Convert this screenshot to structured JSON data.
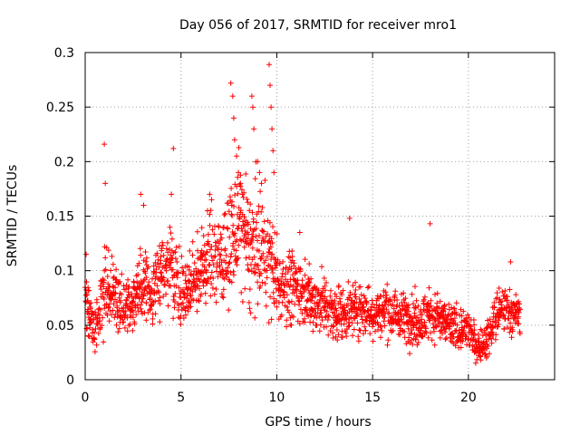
{
  "chart_data": {
    "type": "scatter",
    "title": "Day 056 of 2017, SRMTID for receiver mro1",
    "xlabel": "GPS time / hours",
    "ylabel": "SRMTID / TECUs",
    "xlim": [
      0,
      24.5
    ],
    "ylim": [
      0,
      0.3
    ],
    "xticks": [
      0,
      5,
      10,
      15,
      20
    ],
    "xtick_labels": [
      "0",
      "5",
      "10",
      "15",
      "20"
    ],
    "yticks": [
      0,
      0.05,
      0.1,
      0.15,
      0.2,
      0.25,
      0.3
    ],
    "ytick_labels": [
      "0",
      "0.05",
      "0.1",
      "0.15",
      "0.2",
      "0.25",
      "0.3"
    ],
    "grid": true,
    "marker": "+",
    "marker_color": "#ff0000",
    "series": [
      {
        "name": "mro1",
        "profile": [
          [
            0.0,
            0.075,
            0.018
          ],
          [
            0.5,
            0.045,
            0.015
          ],
          [
            1.0,
            0.085,
            0.025
          ],
          [
            1.5,
            0.08,
            0.02
          ],
          [
            2.0,
            0.065,
            0.018
          ],
          [
            2.5,
            0.075,
            0.02
          ],
          [
            3.0,
            0.09,
            0.025
          ],
          [
            3.5,
            0.08,
            0.02
          ],
          [
            4.0,
            0.1,
            0.025
          ],
          [
            4.5,
            0.11,
            0.03
          ],
          [
            5.0,
            0.08,
            0.02
          ],
          [
            5.5,
            0.085,
            0.022
          ],
          [
            6.0,
            0.1,
            0.025
          ],
          [
            6.5,
            0.11,
            0.03
          ],
          [
            7.0,
            0.11,
            0.03
          ],
          [
            7.5,
            0.12,
            0.035
          ],
          [
            8.0,
            0.15,
            0.045
          ],
          [
            8.5,
            0.12,
            0.04
          ],
          [
            9.0,
            0.12,
            0.04
          ],
          [
            9.5,
            0.12,
            0.04
          ],
          [
            10.0,
            0.09,
            0.025
          ],
          [
            10.5,
            0.085,
            0.022
          ],
          [
            11.0,
            0.085,
            0.022
          ],
          [
            11.5,
            0.08,
            0.02
          ],
          [
            12.0,
            0.07,
            0.018
          ],
          [
            12.5,
            0.07,
            0.018
          ],
          [
            13.0,
            0.06,
            0.015
          ],
          [
            13.5,
            0.06,
            0.015
          ],
          [
            14.0,
            0.065,
            0.017
          ],
          [
            14.5,
            0.065,
            0.017
          ],
          [
            15.0,
            0.06,
            0.015
          ],
          [
            15.5,
            0.065,
            0.017
          ],
          [
            16.0,
            0.06,
            0.015
          ],
          [
            16.5,
            0.06,
            0.015
          ],
          [
            17.0,
            0.055,
            0.015
          ],
          [
            17.5,
            0.055,
            0.015
          ],
          [
            18.0,
            0.06,
            0.015
          ],
          [
            18.5,
            0.055,
            0.015
          ],
          [
            19.0,
            0.05,
            0.014
          ],
          [
            19.5,
            0.045,
            0.013
          ],
          [
            20.0,
            0.045,
            0.013
          ],
          [
            20.5,
            0.03,
            0.01
          ],
          [
            21.0,
            0.035,
            0.012
          ],
          [
            21.5,
            0.06,
            0.015
          ],
          [
            22.0,
            0.065,
            0.015
          ],
          [
            22.5,
            0.06,
            0.012
          ],
          [
            22.7,
            0.06,
            0.012
          ]
        ],
        "outliers": [
          [
            0.05,
            0.115
          ],
          [
            1.0,
            0.216
          ],
          [
            1.05,
            0.18
          ],
          [
            2.9,
            0.17
          ],
          [
            3.05,
            0.16
          ],
          [
            4.6,
            0.212
          ],
          [
            4.5,
            0.17
          ],
          [
            6.5,
            0.17
          ],
          [
            6.6,
            0.165
          ],
          [
            7.6,
            0.272
          ],
          [
            7.7,
            0.26
          ],
          [
            7.75,
            0.24
          ],
          [
            7.8,
            0.22
          ],
          [
            7.9,
            0.205
          ],
          [
            8.0,
            0.19
          ],
          [
            8.1,
            0.18
          ],
          [
            8.2,
            0.17
          ],
          [
            8.7,
            0.26
          ],
          [
            8.75,
            0.25
          ],
          [
            8.8,
            0.23
          ],
          [
            9.0,
            0.2
          ],
          [
            9.1,
            0.19
          ],
          [
            9.2,
            0.18
          ],
          [
            9.6,
            0.289
          ],
          [
            9.65,
            0.27
          ],
          [
            9.7,
            0.25
          ],
          [
            9.75,
            0.23
          ],
          [
            9.8,
            0.21
          ],
          [
            9.85,
            0.19
          ],
          [
            11.2,
            0.135
          ],
          [
            13.8,
            0.148
          ],
          [
            18.0,
            0.143
          ],
          [
            22.2,
            0.108
          ]
        ]
      }
    ]
  }
}
